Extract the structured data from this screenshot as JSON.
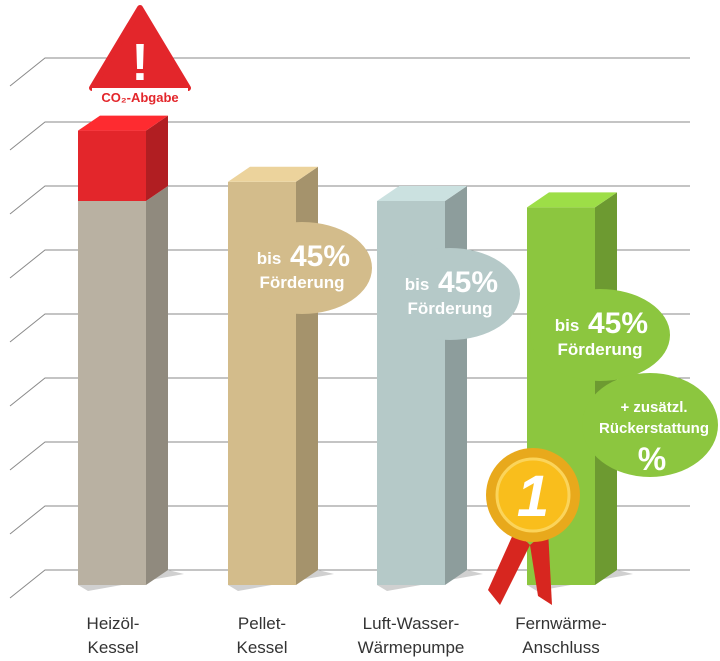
{
  "chart_data": {
    "type": "bar",
    "categories": [
      "Heizöl-\nKessel",
      "Pellet-\nKessel",
      "Luft-Wasser-\nWärmepumpe",
      "Fernwärme-\nAnschluss"
    ],
    "series": [
      {
        "colors": [
          "#b9b1a2",
          "#d3bc8b",
          "#b5c9c8",
          "#8cc63f"
        ],
        "values": [
          6.0,
          6.3,
          6.0,
          5.9
        ]
      },
      {
        "name": "CO₂-Abgabe",
        "color": "#e3262b",
        "values": [
          1.1,
          null,
          null,
          null
        ]
      }
    ],
    "ylim": [
      0,
      8
    ],
    "yticks": [
      0,
      1,
      2,
      3,
      4,
      5,
      6,
      7,
      8
    ],
    "grid": true,
    "warning": "!",
    "badges": [
      {
        "prefix": "bis",
        "amount": "45%",
        "text": "Förderung"
      },
      {
        "prefix": "bis",
        "amount": "45%",
        "text": "Förderung"
      },
      {
        "prefix": "bis",
        "amount": "45%",
        "text": "Förderung"
      }
    ],
    "extra_badge": [
      "+ zusätzl.",
      "Rückerstattung",
      "%"
    ],
    "rank": "1"
  }
}
